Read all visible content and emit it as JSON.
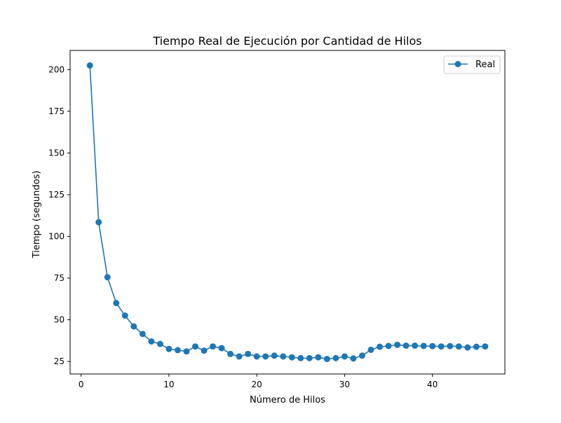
{
  "chart_data": {
    "type": "line",
    "title": "Tiempo Real de Ejecución por Cantidad de Hilos",
    "xlabel": "Número de Hilos",
    "ylabel": "Tiempo (segundos)",
    "xlim": [
      -1.25,
      48.25
    ],
    "ylim": [
      17.5,
      211.5
    ],
    "xticks": [
      0,
      10,
      20,
      30,
      40
    ],
    "yticks": [
      25,
      50,
      75,
      100,
      125,
      150,
      175,
      200
    ],
    "grid": false,
    "legend_position": "top-right",
    "series": [
      {
        "name": "Real",
        "color": "#1f77b4",
        "marker": "circle",
        "x": [
          1,
          2,
          3,
          4,
          5,
          6,
          7,
          8,
          9,
          10,
          11,
          12,
          13,
          14,
          15,
          16,
          17,
          18,
          19,
          20,
          21,
          22,
          23,
          24,
          25,
          26,
          27,
          28,
          29,
          30,
          31,
          32,
          33,
          34,
          35,
          36,
          37,
          38,
          39,
          40,
          41,
          42,
          43,
          44,
          45,
          46
        ],
        "y": [
          202.5,
          108.5,
          75.5,
          60,
          52.5,
          46,
          41.5,
          37,
          35.5,
          32.5,
          31.8,
          31,
          34,
          31.5,
          34,
          33,
          29.5,
          28,
          29.5,
          28,
          28,
          28.5,
          28,
          27.5,
          27,
          27,
          27.5,
          26.5,
          27,
          28,
          26.8,
          28.5,
          32,
          33.8,
          34.3,
          35,
          34.5,
          34.5,
          34.3,
          34.2,
          34,
          34.2,
          34,
          33.4,
          33.8,
          34
        ]
      }
    ]
  }
}
